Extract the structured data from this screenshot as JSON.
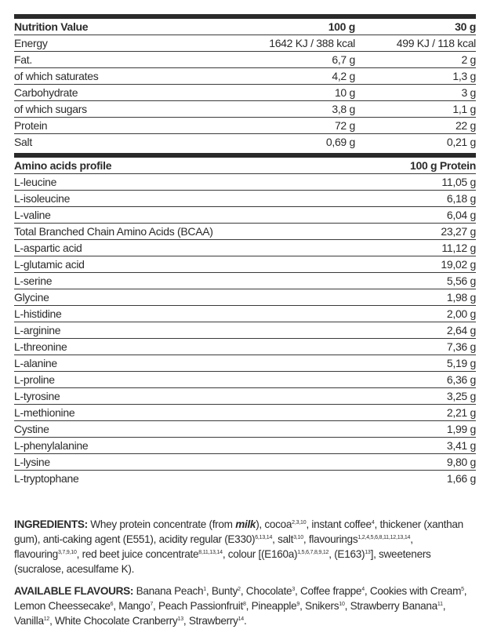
{
  "nutrition": {
    "headers": [
      "Nutrition Value",
      "100 g",
      "30 g"
    ],
    "rows": [
      [
        "Energy",
        "1642 KJ / 388 kcal",
        "499 KJ / 118 kcal"
      ],
      [
        "Fat.",
        "6,7 g",
        "2 g"
      ],
      [
        "of which saturates",
        "4,2 g",
        "1,3 g"
      ],
      [
        "Carbohydrate",
        "10 g",
        "3 g"
      ],
      [
        "of which sugars",
        "3,8 g",
        "1,1 g"
      ],
      [
        "Protein",
        "72 g",
        "22 g"
      ],
      [
        "Salt",
        "0,69 g",
        "0,21 g"
      ]
    ]
  },
  "amino": {
    "headers": [
      "Amino acids profile",
      "100 g Protein"
    ],
    "rows": [
      [
        "L-leucine",
        "11,05 g"
      ],
      [
        "L-isoleucine",
        "6,18 g"
      ],
      [
        "L-valine",
        "6,04 g"
      ],
      [
        "Total Branched Chain Amino Acids (BCAA)",
        "23,27 g"
      ],
      [
        "L-aspartic acid",
        "11,12 g"
      ],
      [
        "L-glutamic acid",
        "19,02 g"
      ],
      [
        "L-serine",
        "5,56 g"
      ],
      [
        "Glycine",
        "1,98 g"
      ],
      [
        "L-histidine",
        "2,00 g"
      ],
      [
        "L-arginine",
        "2,64 g"
      ],
      [
        "L-threonine",
        "7,36 g"
      ],
      [
        "L-alanine",
        "5,19 g"
      ],
      [
        "L-proline",
        "6,36 g"
      ],
      [
        "L-tyrosine",
        "3,25 g"
      ],
      [
        "L-methionine",
        "2,21 g"
      ],
      [
        "Cystine",
        "1,99 g"
      ],
      [
        "L-phenylalanine",
        "3,41 g"
      ],
      [
        "L-lysine",
        "9,80 g"
      ],
      [
        "L-tryptophane",
        "1,66 g"
      ]
    ]
  },
  "ingredients": {
    "label": "INGREDIENTS:",
    "segments": [
      {
        "t": " Whey protein concentrate (from "
      },
      {
        "t": "milk",
        "bi": true
      },
      {
        "t": "), cocoa"
      },
      {
        "t": "2,3,10",
        "sup": true
      },
      {
        "t": ", instant coffee"
      },
      {
        "t": "4",
        "sup": true
      },
      {
        "t": ", thickener (xanthan gum), anti-caking agent (E551), acidity regular (E330)"
      },
      {
        "t": "6,13,14",
        "sup": true
      },
      {
        "t": ", salt"
      },
      {
        "t": "3,10",
        "sup": true
      },
      {
        "t": ", flavourings"
      },
      {
        "t": "1,2,4,5,6,8,11,12,13,14",
        "sup": true
      },
      {
        "t": ", flavouring"
      },
      {
        "t": "3,7,9,10",
        "sup": true
      },
      {
        "t": ", red beet juice concentrate"
      },
      {
        "t": "8,11,13,14",
        "sup": true
      },
      {
        "t": ", colour [(E160a)"
      },
      {
        "t": "1,5,6,7,8,9,12",
        "sup": true
      },
      {
        "t": ", (E163)"
      },
      {
        "t": "13",
        "sup": true
      },
      {
        "t": "], sweeteners (sucralose, acesulfame K)."
      }
    ]
  },
  "flavours": {
    "label": "AVAILABLE FLAVOURS:",
    "segments": [
      {
        "t": " Banana Peach"
      },
      {
        "t": "1",
        "sup": true
      },
      {
        "t": ", Bunty"
      },
      {
        "t": "2",
        "sup": true
      },
      {
        "t": ", Chocolate"
      },
      {
        "t": "3",
        "sup": true
      },
      {
        "t": ", Coffee frappe"
      },
      {
        "t": "4",
        "sup": true
      },
      {
        "t": ", Cookies with Cream"
      },
      {
        "t": "5",
        "sup": true
      },
      {
        "t": ", Lemon Cheessecake"
      },
      {
        "t": "6",
        "sup": true
      },
      {
        "t": ", Mango"
      },
      {
        "t": "7",
        "sup": true
      },
      {
        "t": ", Peach Passionfruit"
      },
      {
        "t": "8",
        "sup": true
      },
      {
        "t": ", Pineapple"
      },
      {
        "t": "9",
        "sup": true
      },
      {
        "t": ", Snikers"
      },
      {
        "t": "10",
        "sup": true
      },
      {
        "t": ", Strawberry Banana"
      },
      {
        "t": "11",
        "sup": true
      },
      {
        "t": ", Vanilla"
      },
      {
        "t": "12",
        "sup": true
      },
      {
        "t": ", White Chocolate Cranberry"
      },
      {
        "t": "13",
        "sup": true
      },
      {
        "t": ", Strawberry"
      },
      {
        "t": "14",
        "sup": true
      },
      {
        "t": "."
      }
    ]
  }
}
